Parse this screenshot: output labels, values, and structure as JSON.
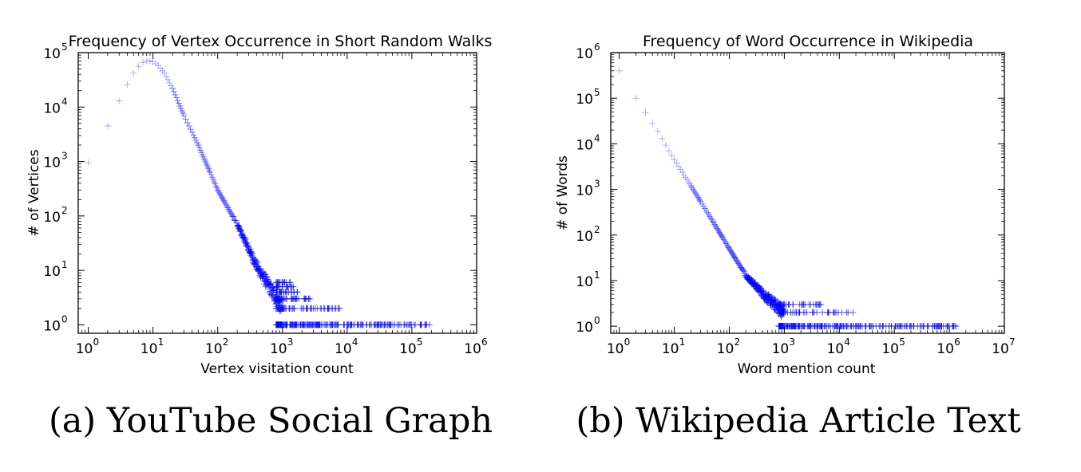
{
  "charts": [
    {
      "caption": "(a) YouTube Social Graph",
      "chart_data": {
        "type": "scatter",
        "title": "Frequency of Vertex Occurrence in Short Random Walks",
        "xlabel": "Vertex visitation count",
        "ylabel": "# of Vertices",
        "xscale": "log",
        "yscale": "log",
        "xlim": [
          0.7,
          1000000
        ],
        "ylim": [
          0.7,
          100000
        ],
        "xticks": [
          {
            "base": "10",
            "exp": "0"
          },
          {
            "base": "10",
            "exp": "1"
          },
          {
            "base": "10",
            "exp": "2"
          },
          {
            "base": "10",
            "exp": "3"
          },
          {
            "base": "10",
            "exp": "4"
          },
          {
            "base": "10",
            "exp": "5"
          },
          {
            "base": "10",
            "exp": "6"
          }
        ],
        "yticks": [
          {
            "base": "10",
            "exp": "0"
          },
          {
            "base": "10",
            "exp": "1"
          },
          {
            "base": "10",
            "exp": "2"
          },
          {
            "base": "10",
            "exp": "3"
          },
          {
            "base": "10",
            "exp": "4"
          },
          {
            "base": "10",
            "exp": "5"
          }
        ],
        "grid": false,
        "marker": "+",
        "color": "#0000ff",
        "anchor_points": [
          [
            1,
            950
          ],
          [
            2,
            4500
          ],
          [
            3,
            13000
          ],
          [
            4,
            26000
          ],
          [
            5,
            42000
          ],
          [
            6,
            56000
          ],
          [
            7,
            66000
          ],
          [
            8,
            70000
          ],
          [
            9,
            70000
          ],
          [
            10,
            68000
          ],
          [
            12,
            58000
          ],
          [
            15,
            42000
          ],
          [
            20,
            22000
          ],
          [
            30,
            7000
          ],
          [
            50,
            2000
          ],
          [
            100,
            300
          ],
          [
            200,
            70
          ],
          [
            400,
            12
          ],
          [
            700,
            4
          ],
          [
            1000,
            2
          ]
        ],
        "tail": {
          "x_range": [
            800,
            200000
          ],
          "y_values": [
            1,
            2,
            3,
            4,
            5,
            6
          ]
        }
      }
    },
    {
      "caption": "(b) Wikipedia Article Text",
      "chart_data": {
        "type": "scatter",
        "title": "Frequency of Word Occurrence in Wikipedia",
        "xlabel": "Word mention count",
        "ylabel": "# of Words",
        "xscale": "log",
        "yscale": "log",
        "xlim": [
          0.7,
          10000000
        ],
        "ylim": [
          0.7,
          1000000
        ],
        "xticks": [
          {
            "base": "10",
            "exp": "0"
          },
          {
            "base": "10",
            "exp": "1"
          },
          {
            "base": "10",
            "exp": "2"
          },
          {
            "base": "10",
            "exp": "3"
          },
          {
            "base": "10",
            "exp": "4"
          },
          {
            "base": "10",
            "exp": "5"
          },
          {
            "base": "10",
            "exp": "6"
          },
          {
            "base": "10",
            "exp": "7"
          }
        ],
        "yticks": [
          {
            "base": "10",
            "exp": "0"
          },
          {
            "base": "10",
            "exp": "1"
          },
          {
            "base": "10",
            "exp": "2"
          },
          {
            "base": "10",
            "exp": "3"
          },
          {
            "base": "10",
            "exp": "4"
          },
          {
            "base": "10",
            "exp": "5"
          },
          {
            "base": "10",
            "exp": "6"
          }
        ],
        "grid": false,
        "marker": "+",
        "color": "#0000ff",
        "anchor_points": [
          [
            1,
            400000
          ],
          [
            2,
            100000
          ],
          [
            3,
            48000
          ],
          [
            4,
            28000
          ],
          [
            5,
            19000
          ],
          [
            6,
            13000
          ],
          [
            8,
            7000
          ],
          [
            10,
            4500
          ],
          [
            20,
            1200
          ],
          [
            50,
            200
          ],
          [
            100,
            50
          ],
          [
            200,
            13
          ],
          [
            500,
            4
          ],
          [
            1000,
            2
          ]
        ],
        "tail": {
          "x_range": [
            800,
            2000000
          ],
          "y_values": [
            1,
            2,
            3
          ]
        }
      }
    }
  ]
}
